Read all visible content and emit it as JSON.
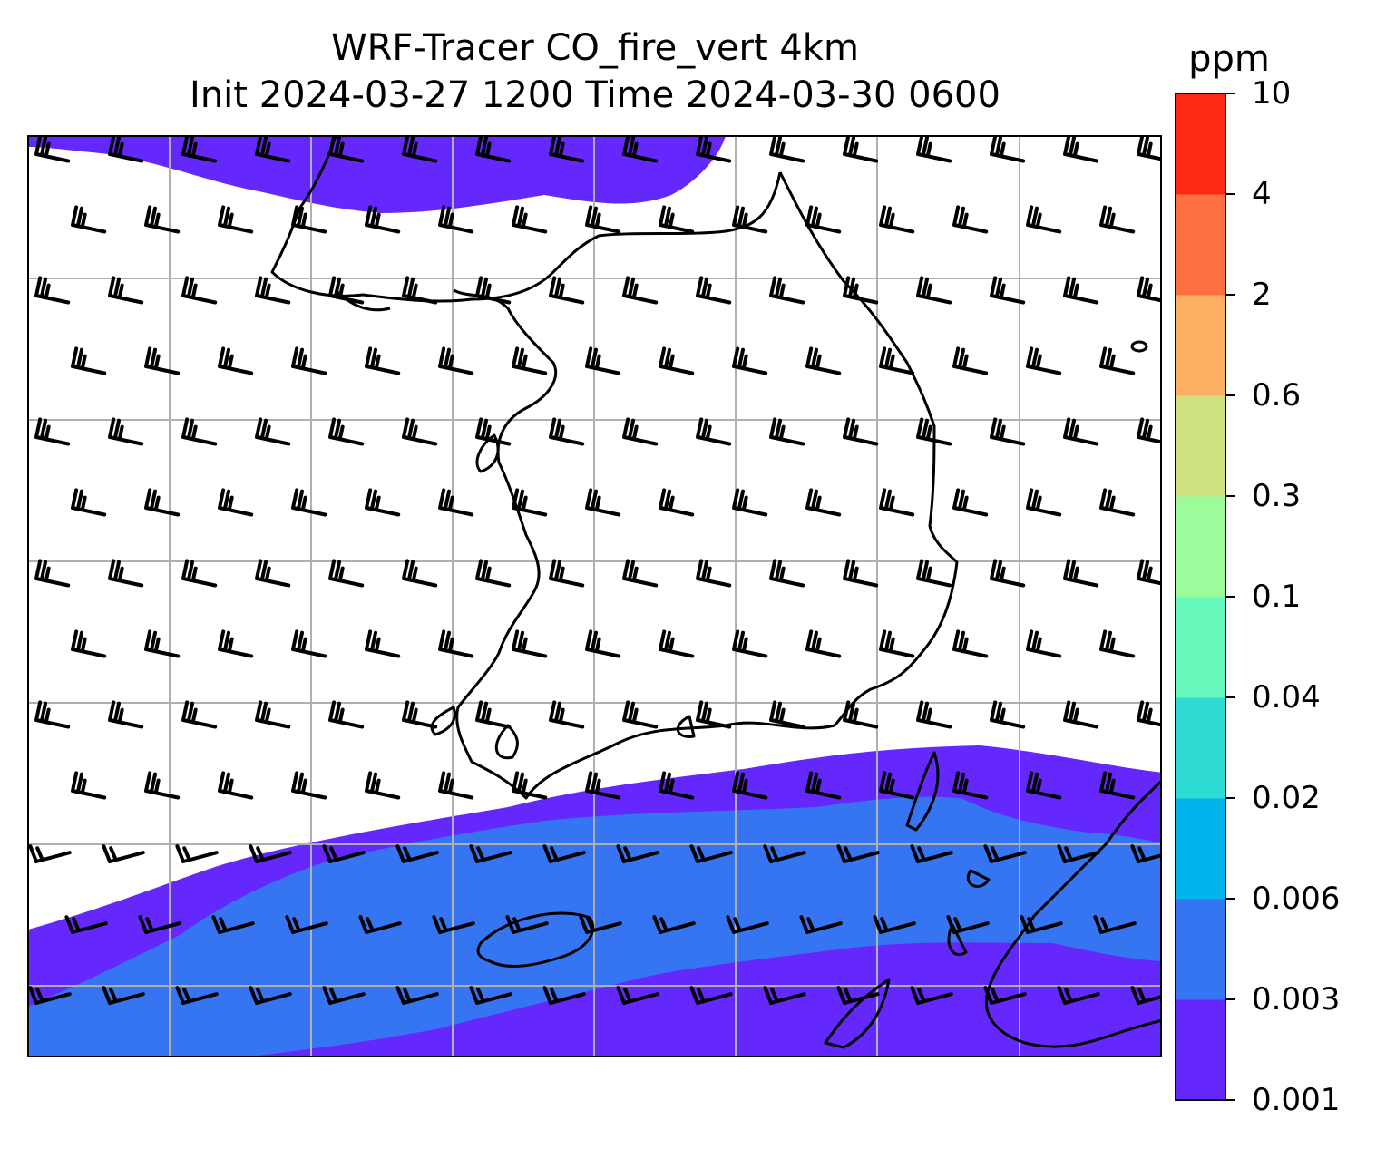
{
  "title": {
    "line1": "WRF-Tracer CO_fire_vert 4km",
    "line2": "Init 2024-03-27 1200 Time 2024-03-30 0600"
  },
  "colorbar": {
    "unit": "ppm",
    "levels": [
      "0.001",
      "0.003",
      "0.006",
      "0.02",
      "0.04",
      "0.1",
      "0.3",
      "0.6",
      "2",
      "4",
      "10"
    ],
    "colors": [
      "#6528fc",
      "#3675f2",
      "#00b5eb",
      "#2edcd4",
      "#67f9bb",
      "#9cfc9c",
      "#cee282",
      "#fdae61",
      "#fe7040",
      "#fe2913"
    ]
  },
  "map": {
    "background": "#ffffff",
    "gridline_color": "#b0b0b0",
    "coastline_color": "#000000",
    "barb_color": "#000000",
    "prevailing_wind": "westerly"
  }
}
